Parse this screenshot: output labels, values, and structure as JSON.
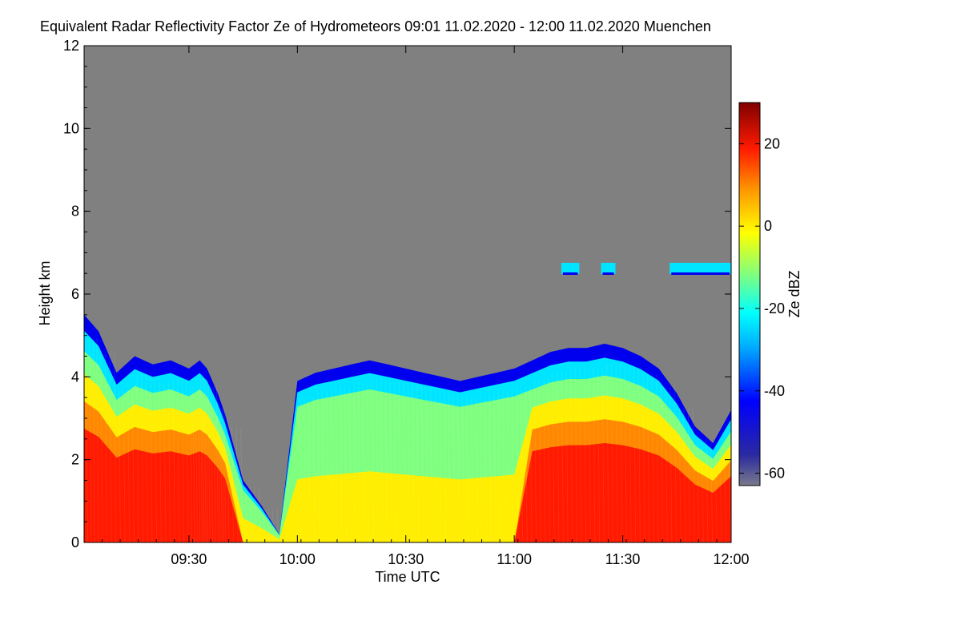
{
  "chart_data": {
    "type": "heatmap",
    "title": "Equivalent Radar Reflectivity Factor Ze of Hydrometeors",
    "time_range": "09:01 11.02.2020 - 12:00 11.02.2020",
    "location": "Muenchen",
    "xlabel": "Time UTC",
    "ylabel": "Height km",
    "x_range": [
      "09:01",
      "12:00"
    ],
    "x_ticks": [
      "09:30",
      "10:00",
      "10:30",
      "11:00",
      "11:30",
      "12:00"
    ],
    "ylim": [
      0,
      12
    ],
    "y_ticks": [
      0,
      2,
      4,
      6,
      8,
      10,
      12
    ],
    "background_color": "#808080",
    "colorbar": {
      "label": "Ze dBZ",
      "range": [
        -63,
        30
      ],
      "ticks": [
        -60,
        -40,
        -20,
        0,
        20
      ],
      "colormap": "jet"
    },
    "echo_profile": {
      "description_units": "time HH:MM vs echo top height km, approx. top of precipitation echoes",
      "times": [
        "09:01",
        "09:05",
        "09:10",
        "09:15",
        "09:20",
        "09:25",
        "09:30",
        "09:33",
        "09:35",
        "09:38",
        "09:40",
        "09:45",
        "09:50",
        "09:55",
        "10:00",
        "10:05",
        "10:10",
        "10:15",
        "10:20",
        "10:25",
        "10:30",
        "10:35",
        "10:40",
        "10:45",
        "10:50",
        "10:55",
        "11:00",
        "11:05",
        "11:10",
        "11:15",
        "11:20",
        "11:25",
        "11:30",
        "11:35",
        "11:40",
        "11:45",
        "11:50",
        "11:55",
        "12:00"
      ],
      "echo_top_km": [
        5.5,
        5.1,
        4.1,
        4.5,
        4.3,
        4.4,
        4.2,
        4.4,
        4.2,
        3.6,
        3.1,
        1.5,
        0.9,
        0.2,
        3.9,
        4.1,
        4.2,
        4.3,
        4.4,
        4.3,
        4.2,
        4.1,
        4.0,
        3.9,
        4.0,
        4.1,
        4.2,
        4.4,
        4.6,
        4.7,
        4.7,
        4.8,
        4.7,
        4.5,
        4.2,
        3.6,
        2.8,
        2.4,
        3.2
      ]
    },
    "upper_cloud_km": 6.6
  }
}
